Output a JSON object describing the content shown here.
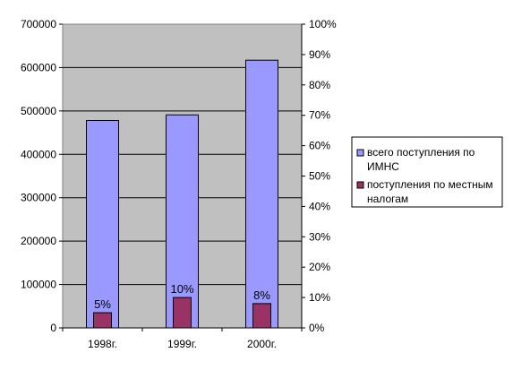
{
  "chart_data": {
    "type": "bar",
    "title": "",
    "xlabel": "",
    "ylabel": "",
    "categories": [
      "1998г.",
      "1999г.",
      "2000г."
    ],
    "series": [
      {
        "name": "всего поступления по ИМНС",
        "values": [
          478000,
          491000,
          617000
        ],
        "color": "#9999ff",
        "axis": "left"
      },
      {
        "name": "поступления по местным налогам",
        "values": [
          35000,
          70000,
          56000
        ],
        "color": "#993366",
        "axis": "left",
        "data_labels": [
          "5%",
          "10%",
          "8%"
        ]
      }
    ],
    "ylim": [
      0,
      700000
    ],
    "y_ticks": [
      "0",
      "100000",
      "200000",
      "300000",
      "400000",
      "500000",
      "600000",
      "700000"
    ],
    "y2lim": [
      0,
      100
    ],
    "y2_ticks": [
      "0%",
      "10%",
      "20%",
      "30%",
      "40%",
      "50%",
      "60%",
      "70%",
      "80%",
      "90%",
      "100%"
    ],
    "grid": true,
    "legend_position": "right",
    "colors": {
      "plot_bg": "#c0c0c0",
      "grid": "#000000",
      "page_bg": "#ffffff"
    }
  }
}
